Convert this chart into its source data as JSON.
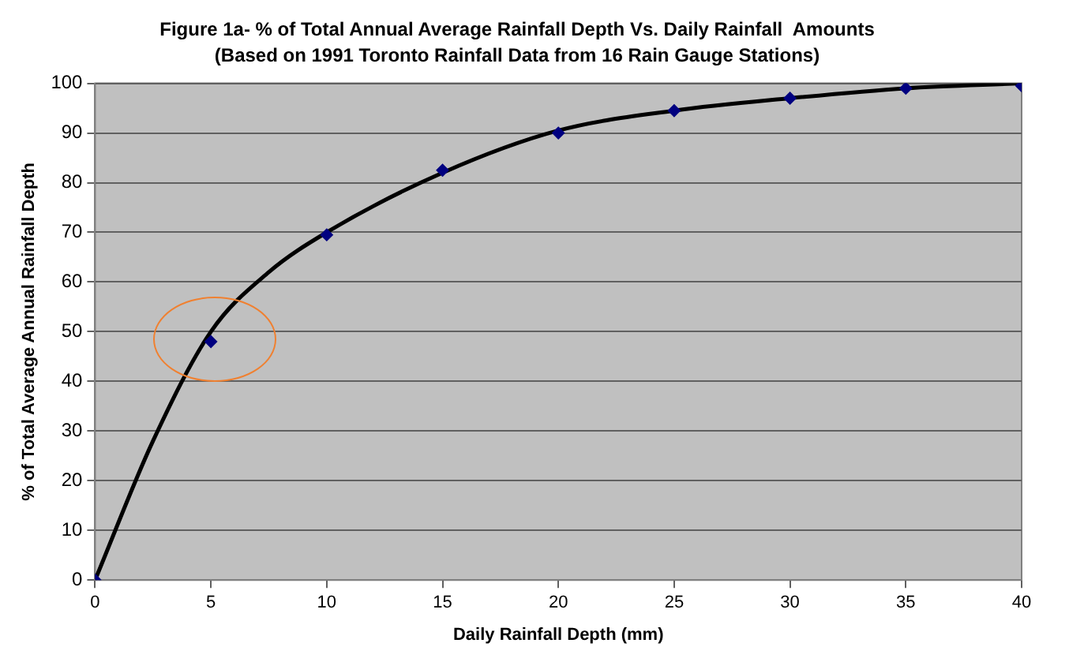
{
  "chart_data": {
    "type": "scatter",
    "title": "Figure 1a- % of Total Annual Average Rainfall Depth Vs. Daily Rainfall  Amounts",
    "subtitle": "(Based on 1991 Toronto Rainfall Data from 16 Rain Gauge Stations)",
    "xlabel": "Daily Rainfall Depth (mm)",
    "ylabel": "% of Total Average Annual Rainfall Depth",
    "x": [
      0,
      5,
      10,
      15,
      20,
      25,
      30,
      35,
      40
    ],
    "series": [
      {
        "color": "#000080",
        "marker": "diamond",
        "values": [
          0,
          48,
          69.5,
          82.5,
          90,
          94.5,
          97,
          99,
          99.5
        ]
      },
      {
        "type": "line",
        "color": "#000000",
        "marker": "none",
        "line_style": "solid",
        "x": [
          0,
          2.5,
          5,
          7.5,
          10,
          15,
          20,
          25,
          30,
          35,
          40
        ],
        "values": [
          0,
          28,
          50,
          62,
          70,
          82,
          90.5,
          94.5,
          97,
          99,
          100
        ]
      }
    ],
    "xlim": [
      0,
      40
    ],
    "xticks": [
      0,
      5,
      10,
      15,
      20,
      25,
      30,
      35,
      40
    ],
    "ylim": [
      0,
      100
    ],
    "yticks": [
      0,
      10,
      20,
      30,
      40,
      50,
      60,
      70,
      80,
      90,
      100
    ],
    "grid": "y",
    "legend": false
  }
}
